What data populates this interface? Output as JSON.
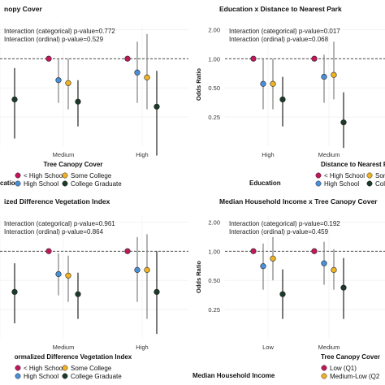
{
  "colors": {
    "lt_hs": "#c2185b",
    "hs": "#4a90d9",
    "some_college": "#f0b323",
    "college_grad": "#1b3a2a",
    "low_q1": "#c2185b",
    "med_low_q2": "#f0b323",
    "ci": "#8a8a8a",
    "ref_line": "#333333"
  },
  "chart_data": [
    {
      "type": "scatter",
      "title": "nopy Cover",
      "xlabel": "Tree Canopy Cover",
      "ylabel": "",
      "y_scale": "log",
      "y_ticks": [],
      "reference_y": 1.0,
      "categories": [
        "",
        "Medium",
        "High"
      ],
      "annotations": [
        "Interaction (categorical) p-value=0.772",
        "Interaction (ordinal) p-value=0.529"
      ],
      "legend_title": "cation",
      "legend_position": "bottom",
      "series": [
        {
          "name": "< High School",
          "color_key": "lt_hs",
          "points": [
            {
              "x": 1,
              "y": 1.0
            },
            {
              "x": 2,
              "y": 1.0
            }
          ]
        },
        {
          "name": "High School",
          "color_key": "hs",
          "points": [
            {
              "x": 1,
              "y": 0.6,
              "lo": 0.35,
              "hi": 1.0
            },
            {
              "x": 2,
              "y": 0.72,
              "lo": 0.35,
              "hi": 1.5
            }
          ]
        },
        {
          "name": "Some College",
          "color_key": "some_college",
          "points": [
            {
              "x": 1,
              "y": 0.56,
              "lo": 0.3,
              "hi": 1.0
            },
            {
              "x": 2,
              "y": 0.64,
              "lo": 0.3,
              "hi": 1.8
            }
          ]
        },
        {
          "name": "College Graduate",
          "color_key": "college_grad",
          "points": [
            {
              "x": 0,
              "y": 0.38,
              "lo": 0.15,
              "hi": 0.8
            },
            {
              "x": 1,
              "y": 0.36,
              "lo": 0.2,
              "hi": 0.6
            },
            {
              "x": 2,
              "y": 0.32,
              "lo": 0.1,
              "hi": 0.75
            }
          ]
        }
      ]
    },
    {
      "type": "scatter",
      "title": "Education x Distance to Nearest Park",
      "xlabel": "Distance to Nearest Par",
      "ylabel": "Odds Ratio",
      "y_scale": "log",
      "y_ticks": [
        0.25,
        0.5,
        1.0,
        2.0
      ],
      "y_tick_labels": [
        "0.25",
        "0.50",
        "1.00",
        "2.00"
      ],
      "reference_y": 1.0,
      "categories": [
        "High",
        "Medium"
      ],
      "annotations": [
        "Interaction (categorical) p-value=0.017",
        "Interaction (ordinal) p-value=0.068"
      ],
      "legend_title": "Education",
      "legend_position": "bottom",
      "series": [
        {
          "name": "< High School",
          "color_key": "lt_hs",
          "points": [
            {
              "x": 0,
              "y": 1.0
            },
            {
              "x": 1,
              "y": 1.0
            }
          ]
        },
        {
          "name": "High School",
          "color_key": "hs",
          "points": [
            {
              "x": 0,
              "y": 0.55,
              "lo": 0.3,
              "hi": 1.0
            },
            {
              "x": 1,
              "y": 0.65,
              "lo": 0.35,
              "hi": 1.1
            }
          ]
        },
        {
          "name": "Some College",
          "color_key": "some_college",
          "points": [
            {
              "x": 0,
              "y": 0.55,
              "lo": 0.3,
              "hi": 1.0
            },
            {
              "x": 1,
              "y": 0.68,
              "lo": 0.38,
              "hi": 1.5
            }
          ]
        },
        {
          "name": "College Graduate",
          "color_key": "college_grad",
          "points": [
            {
              "x": 0,
              "y": 0.38,
              "lo": 0.2,
              "hi": 0.65
            },
            {
              "x": 1,
              "y": 0.22,
              "lo": 0.12,
              "hi": 0.45
            }
          ]
        }
      ]
    },
    {
      "type": "scatter",
      "title": "ized Difference Vegetation Index",
      "xlabel": "ormalized Difference Vegetation Index",
      "ylabel": "",
      "y_scale": "log",
      "y_ticks": [],
      "reference_y": 1.0,
      "categories": [
        "",
        "Medium",
        "High"
      ],
      "annotations": [
        "Interaction (categorical) p-value=0.961",
        "Interaction (ordinal) p-value=0.864"
      ],
      "legend_title": "",
      "legend_position": "bottom",
      "series": [
        {
          "name": "< High School",
          "color_key": "lt_hs",
          "points": [
            {
              "x": 1,
              "y": 1.0
            },
            {
              "x": 2,
              "y": 1.0
            }
          ]
        },
        {
          "name": "High School",
          "color_key": "hs",
          "points": [
            {
              "x": 1,
              "y": 0.58,
              "lo": 0.35,
              "hi": 0.95
            },
            {
              "x": 2,
              "y": 0.64,
              "lo": 0.3,
              "hi": 1.4
            }
          ]
        },
        {
          "name": "Some College",
          "color_key": "some_college",
          "points": [
            {
              "x": 1,
              "y": 0.56,
              "lo": 0.3,
              "hi": 0.9
            },
            {
              "x": 2,
              "y": 0.64,
              "lo": 0.2,
              "hi": 1.5
            }
          ]
        },
        {
          "name": "College Graduate",
          "color_key": "college_grad",
          "points": [
            {
              "x": 0,
              "y": 0.38,
              "lo": 0.18,
              "hi": 0.75
            },
            {
              "x": 1,
              "y": 0.36,
              "lo": 0.2,
              "hi": 0.6
            },
            {
              "x": 2,
              "y": 0.38,
              "lo": 0.14,
              "hi": 1.0
            }
          ]
        }
      ]
    },
    {
      "type": "scatter",
      "title": "Median Household Income x Tree Canopy Cover",
      "xlabel": "Tree Canopy Cover",
      "ylabel": "Odds Ratio",
      "y_scale": "log",
      "y_ticks": [
        0.25,
        0.5,
        1.0,
        2.0
      ],
      "y_tick_labels": [
        "0.25",
        "0.50",
        "1.00",
        "2.00"
      ],
      "reference_y": 1.0,
      "categories": [
        "Low",
        "Medium"
      ],
      "annotations": [
        "Interaction (categorical) p-value=0.192",
        "Interaction (ordinal) p-value=0.459"
      ],
      "legend_title": "Median Household Income",
      "legend_position": "bottom",
      "series": [
        {
          "name": "Low (Q1)",
          "color_key": "low_q1",
          "points": [
            {
              "x": 0,
              "y": 1.0
            },
            {
              "x": 1,
              "y": 1.0
            }
          ]
        },
        {
          "name": "",
          "color_key": "hs",
          "points": [
            {
              "x": 0,
              "y": 0.7,
              "lo": 0.4,
              "hi": 1.2
            },
            {
              "x": 1,
              "y": 0.75,
              "lo": 0.45,
              "hi": 1.25
            }
          ]
        },
        {
          "name": "Medium-Low (Q2)",
          "color_key": "med_low_q2",
          "points": [
            {
              "x": 0,
              "y": 0.84,
              "lo": 0.5,
              "hi": 1.4
            },
            {
              "x": 1,
              "y": 0.64,
              "lo": 0.4,
              "hi": 1.05
            }
          ]
        },
        {
          "name": "",
          "color_key": "college_grad",
          "points": [
            {
              "x": 0,
              "y": 0.36,
              "lo": 0.2,
              "hi": 0.65
            },
            {
              "x": 1,
              "y": 0.42,
              "lo": 0.2,
              "hi": 0.85
            }
          ]
        }
      ]
    }
  ],
  "legend_rows": [
    {
      "items": [
        {
          "label": "< High School",
          "color_key": "lt_hs"
        },
        {
          "label": "Some College",
          "color_key": "some_college"
        }
      ],
      "second": [
        {
          "label": "High School",
          "color_key": "hs"
        },
        {
          "label": "College Graduate",
          "color_key": "college_grad"
        }
      ]
    },
    {
      "items": [
        {
          "label": "< High School",
          "color_key": "lt_hs"
        },
        {
          "label": "Some",
          "color_key": "some_college"
        }
      ],
      "second": [
        {
          "label": "High School",
          "color_key": "hs"
        },
        {
          "label": "Colle",
          "color_key": "college_grad"
        }
      ]
    },
    {
      "items": [
        {
          "label": "< High School",
          "color_key": "lt_hs"
        },
        {
          "label": "Some College",
          "color_key": "some_college"
        }
      ],
      "second": [
        {
          "label": "High School",
          "color_key": "hs"
        },
        {
          "label": "College Graduate",
          "color_key": "college_grad"
        }
      ]
    },
    {
      "items": [
        {
          "label": "Low (Q1)",
          "color_key": "low_q1"
        }
      ],
      "second": [
        {
          "label": "Medium-Low (Q2",
          "color_key": "med_low_q2"
        }
      ]
    }
  ]
}
